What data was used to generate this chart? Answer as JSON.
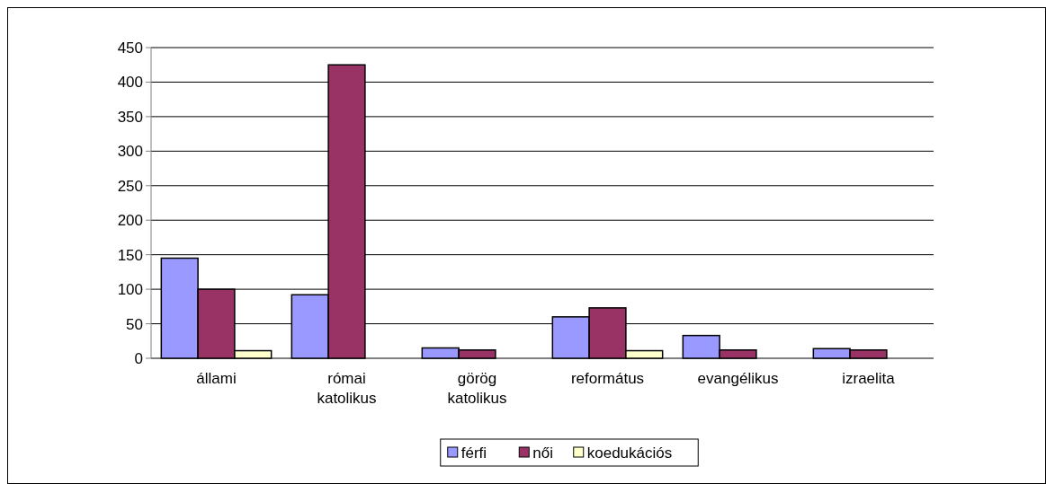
{
  "chart_data": {
    "type": "bar",
    "categories": [
      "állami",
      "római katolikus",
      "görög katolikus",
      "református",
      "evangélikus",
      "izraelita"
    ],
    "series": [
      {
        "name": "férfi",
        "color": "#9999ff",
        "values": [
          145,
          92,
          15,
          60,
          33,
          14
        ]
      },
      {
        "name": "női",
        "color": "#993366",
        "values": [
          100,
          425,
          12,
          73,
          12,
          12
        ]
      },
      {
        "name": "koedukációs",
        "color": "#ffffcc",
        "values": [
          11,
          null,
          null,
          11,
          null,
          null
        ]
      }
    ],
    "ylim": [
      0,
      450
    ],
    "yticks": [
      0,
      50,
      100,
      150,
      200,
      250,
      300,
      350,
      400,
      450
    ],
    "grid": "y",
    "legend": "bottom"
  }
}
